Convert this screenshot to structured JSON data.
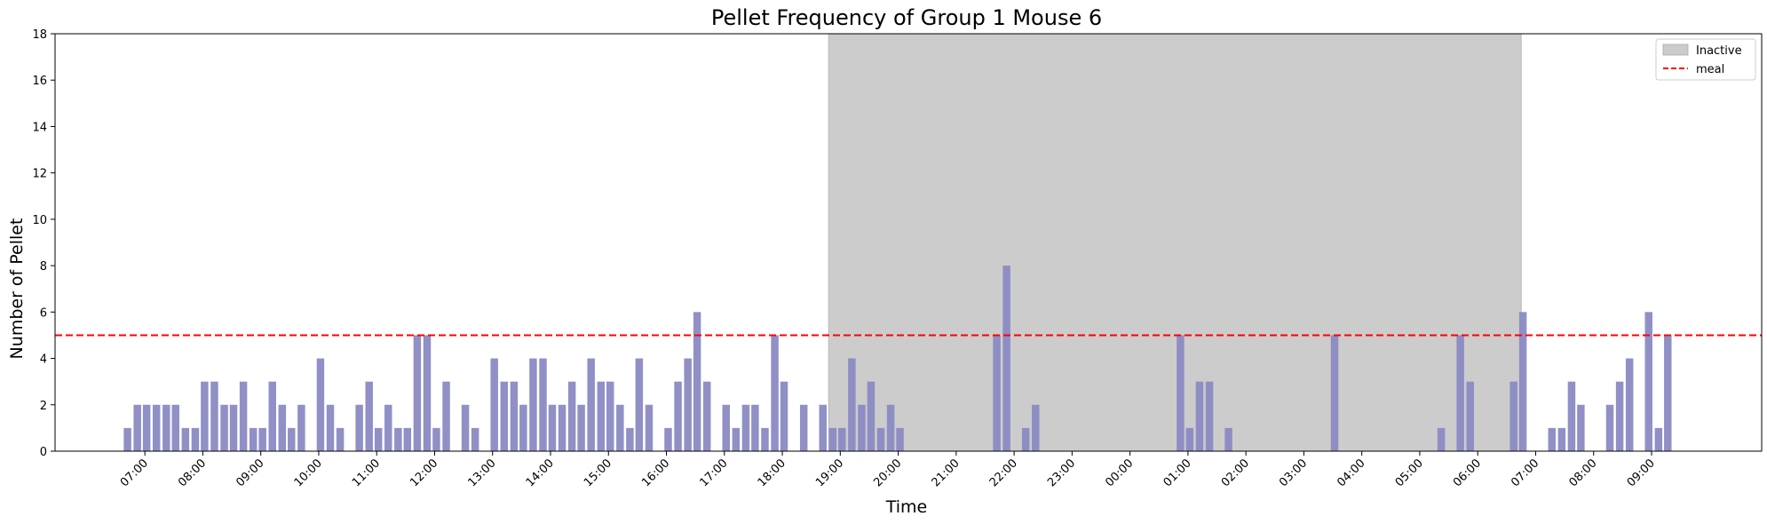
{
  "chart_data": {
    "type": "bar",
    "title": "Pellet Frequency of Group 1 Mouse 6",
    "xlabel": "Time",
    "ylabel": "Number of Pellet",
    "ylim": [
      0,
      18
    ],
    "yticks": [
      0,
      2,
      4,
      6,
      8,
      10,
      12,
      14,
      16,
      18
    ],
    "xlim_hours": [
      5.45,
      34.9
    ],
    "xticks": [
      {
        "hour": 7,
        "label": "07:00"
      },
      {
        "hour": 8,
        "label": "08:00"
      },
      {
        "hour": 9,
        "label": "09:00"
      },
      {
        "hour": 10,
        "label": "10:00"
      },
      {
        "hour": 11,
        "label": "11:00"
      },
      {
        "hour": 12,
        "label": "12:00"
      },
      {
        "hour": 13,
        "label": "13:00"
      },
      {
        "hour": 14,
        "label": "14:00"
      },
      {
        "hour": 15,
        "label": "15:00"
      },
      {
        "hour": 16,
        "label": "16:00"
      },
      {
        "hour": 17,
        "label": "17:00"
      },
      {
        "hour": 18,
        "label": "18:00"
      },
      {
        "hour": 19,
        "label": "19:00"
      },
      {
        "hour": 20,
        "label": "20:00"
      },
      {
        "hour": 21,
        "label": "21:00"
      },
      {
        "hour": 22,
        "label": "22:00"
      },
      {
        "hour": 23,
        "label": "23:00"
      },
      {
        "hour": 24,
        "label": "00:00"
      },
      {
        "hour": 25,
        "label": "01:00"
      },
      {
        "hour": 26,
        "label": "02:00"
      },
      {
        "hour": 27,
        "label": "03:00"
      },
      {
        "hour": 28,
        "label": "04:00"
      },
      {
        "hour": 29,
        "label": "05:00"
      },
      {
        "hour": 30,
        "label": "06:00"
      },
      {
        "hour": 31,
        "label": "07:00"
      },
      {
        "hour": 32,
        "label": "08:00"
      },
      {
        "hour": 33,
        "label": "09:00"
      }
    ],
    "bar_width_hours": 0.13,
    "bar_color": "#8a8ac4",
    "bars": [
      {
        "hour": 6.7,
        "value": 1
      },
      {
        "hour": 6.87,
        "value": 2
      },
      {
        "hour": 7.03,
        "value": 2
      },
      {
        "hour": 7.2,
        "value": 2
      },
      {
        "hour": 7.37,
        "value": 2
      },
      {
        "hour": 7.53,
        "value": 2
      },
      {
        "hour": 7.7,
        "value": 1
      },
      {
        "hour": 7.87,
        "value": 1
      },
      {
        "hour": 8.03,
        "value": 3
      },
      {
        "hour": 8.2,
        "value": 3
      },
      {
        "hour": 8.37,
        "value": 2
      },
      {
        "hour": 8.53,
        "value": 2
      },
      {
        "hour": 8.7,
        "value": 3
      },
      {
        "hour": 8.87,
        "value": 1
      },
      {
        "hour": 9.03,
        "value": 1
      },
      {
        "hour": 9.2,
        "value": 3
      },
      {
        "hour": 9.37,
        "value": 2
      },
      {
        "hour": 9.53,
        "value": 1
      },
      {
        "hour": 9.7,
        "value": 2
      },
      {
        "hour": 10.03,
        "value": 4
      },
      {
        "hour": 10.2,
        "value": 2
      },
      {
        "hour": 10.37,
        "value": 1
      },
      {
        "hour": 10.7,
        "value": 2
      },
      {
        "hour": 10.87,
        "value": 3
      },
      {
        "hour": 11.03,
        "value": 1
      },
      {
        "hour": 11.2,
        "value": 2
      },
      {
        "hour": 11.37,
        "value": 1
      },
      {
        "hour": 11.53,
        "value": 1
      },
      {
        "hour": 11.7,
        "value": 5
      },
      {
        "hour": 11.87,
        "value": 5
      },
      {
        "hour": 12.03,
        "value": 1
      },
      {
        "hour": 12.2,
        "value": 3
      },
      {
        "hour": 12.53,
        "value": 2
      },
      {
        "hour": 12.7,
        "value": 1
      },
      {
        "hour": 13.03,
        "value": 4
      },
      {
        "hour": 13.2,
        "value": 3
      },
      {
        "hour": 13.37,
        "value": 3
      },
      {
        "hour": 13.53,
        "value": 2
      },
      {
        "hour": 13.7,
        "value": 4
      },
      {
        "hour": 13.87,
        "value": 4
      },
      {
        "hour": 14.03,
        "value": 2
      },
      {
        "hour": 14.2,
        "value": 2
      },
      {
        "hour": 14.37,
        "value": 3
      },
      {
        "hour": 14.53,
        "value": 2
      },
      {
        "hour": 14.7,
        "value": 4
      },
      {
        "hour": 14.87,
        "value": 3
      },
      {
        "hour": 15.03,
        "value": 3
      },
      {
        "hour": 15.2,
        "value": 2
      },
      {
        "hour": 15.37,
        "value": 1
      },
      {
        "hour": 15.53,
        "value": 4
      },
      {
        "hour": 15.7,
        "value": 2
      },
      {
        "hour": 16.03,
        "value": 1
      },
      {
        "hour": 16.2,
        "value": 3
      },
      {
        "hour": 16.37,
        "value": 4
      },
      {
        "hour": 16.53,
        "value": 6
      },
      {
        "hour": 16.7,
        "value": 3
      },
      {
        "hour": 17.03,
        "value": 2
      },
      {
        "hour": 17.2,
        "value": 1
      },
      {
        "hour": 17.37,
        "value": 2
      },
      {
        "hour": 17.53,
        "value": 2
      },
      {
        "hour": 17.7,
        "value": 1
      },
      {
        "hour": 17.87,
        "value": 5
      },
      {
        "hour": 18.03,
        "value": 3
      },
      {
        "hour": 18.37,
        "value": 2
      },
      {
        "hour": 18.7,
        "value": 2
      },
      {
        "hour": 18.87,
        "value": 1
      },
      {
        "hour": 19.03,
        "value": 1
      },
      {
        "hour": 19.2,
        "value": 4
      },
      {
        "hour": 19.37,
        "value": 2
      },
      {
        "hour": 19.53,
        "value": 3
      },
      {
        "hour": 19.7,
        "value": 1
      },
      {
        "hour": 19.87,
        "value": 2
      },
      {
        "hour": 20.03,
        "value": 1
      },
      {
        "hour": 21.7,
        "value": 5
      },
      {
        "hour": 21.87,
        "value": 8
      },
      {
        "hour": 22.2,
        "value": 1
      },
      {
        "hour": 22.37,
        "value": 2
      },
      {
        "hour": 24.87,
        "value": 5
      },
      {
        "hour": 25.03,
        "value": 1
      },
      {
        "hour": 25.2,
        "value": 3
      },
      {
        "hour": 25.37,
        "value": 3
      },
      {
        "hour": 25.7,
        "value": 1
      },
      {
        "hour": 27.53,
        "value": 5
      },
      {
        "hour": 29.37,
        "value": 1
      },
      {
        "hour": 29.7,
        "value": 5
      },
      {
        "hour": 29.87,
        "value": 3
      },
      {
        "hour": 30.62,
        "value": 3
      },
      {
        "hour": 30.78,
        "value": 6
      },
      {
        "hour": 31.28,
        "value": 1
      },
      {
        "hour": 31.45,
        "value": 1
      },
      {
        "hour": 31.62,
        "value": 3
      },
      {
        "hour": 31.78,
        "value": 2
      },
      {
        "hour": 32.28,
        "value": 2
      },
      {
        "hour": 32.45,
        "value": 3
      },
      {
        "hour": 32.62,
        "value": 4
      },
      {
        "hour": 32.95,
        "value": 6
      },
      {
        "hour": 33.12,
        "value": 1
      },
      {
        "hour": 33.28,
        "value": 5
      }
    ],
    "inactive_period": {
      "start_hour": 18.8,
      "end_hour": 30.75,
      "color": "#cccccc"
    },
    "meal_threshold": {
      "value": 5,
      "color": "#ff0000"
    },
    "legend": {
      "position": "top-right",
      "entries": [
        {
          "label": "Inactive",
          "kind": "patch",
          "color": "#cccccc"
        },
        {
          "label": "meal",
          "kind": "dashed-line",
          "color": "#ff0000"
        }
      ]
    },
    "grid": false
  }
}
